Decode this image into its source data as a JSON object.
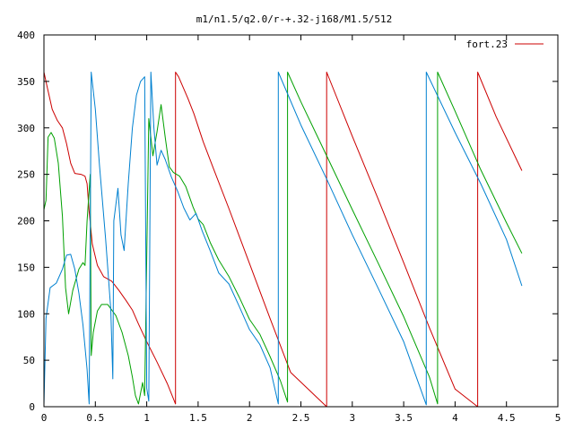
{
  "chart_data": {
    "type": "line",
    "title": "m1/n1.5/q2.0/r-+.32-j168/M1.5/512",
    "xlabel": "",
    "ylabel": "",
    "xlim": [
      0,
      5
    ],
    "ylim": [
      0,
      400
    ],
    "x_ticks": [
      "0",
      "0.5",
      "1",
      "1.5",
      "2",
      "2.5",
      "3",
      "3.5",
      "4",
      "4.5",
      "5"
    ],
    "y_ticks": [
      "0",
      "50",
      "100",
      "150",
      "200",
      "250",
      "300",
      "350",
      "400"
    ],
    "grid": false,
    "legend": {
      "position": "top-right",
      "entries": [
        "fort.23"
      ]
    },
    "series": [
      {
        "name": "fort.23",
        "color": "#cc0000",
        "points": [
          [
            0.0,
            360
          ],
          [
            0.03,
            345
          ],
          [
            0.08,
            320
          ],
          [
            0.13,
            308
          ],
          [
            0.18,
            300
          ],
          [
            0.22,
            283
          ],
          [
            0.26,
            262
          ],
          [
            0.3,
            251
          ],
          [
            0.36,
            250
          ],
          [
            0.4,
            248
          ],
          [
            0.42,
            240
          ],
          [
            0.44,
            210
          ],
          [
            0.47,
            175
          ],
          [
            0.52,
            152
          ],
          [
            0.58,
            140
          ],
          [
            0.66,
            135
          ],
          [
            0.73,
            125
          ],
          [
            0.8,
            114
          ],
          [
            0.86,
            104
          ],
          [
            0.92,
            89
          ],
          [
            1.0,
            70
          ],
          [
            1.1,
            48
          ],
          [
            1.2,
            25
          ],
          [
            1.28,
            3
          ],
          [
            1.28,
            360
          ],
          [
            1.31,
            355
          ],
          [
            1.4,
            332
          ],
          [
            1.46,
            315
          ],
          [
            1.55,
            285
          ],
          [
            1.65,
            256
          ],
          [
            1.8,
            213
          ],
          [
            2.0,
            154
          ],
          [
            2.2,
            95
          ],
          [
            2.4,
            37
          ],
          [
            2.75,
            0
          ],
          [
            2.75,
            360
          ],
          [
            3.0,
            291
          ],
          [
            3.25,
            224
          ],
          [
            3.5,
            155
          ],
          [
            3.75,
            85
          ],
          [
            4.0,
            19
          ],
          [
            4.22,
            0
          ],
          [
            4.22,
            360
          ],
          [
            4.4,
            312
          ],
          [
            4.65,
            254
          ]
        ]
      },
      {
        "color": "#00a000",
        "points": [
          [
            0.0,
            212
          ],
          [
            0.02,
            222
          ],
          [
            0.04,
            290
          ],
          [
            0.07,
            295
          ],
          [
            0.1,
            289
          ],
          [
            0.14,
            262
          ],
          [
            0.18,
            205
          ],
          [
            0.21,
            128
          ],
          [
            0.24,
            100
          ],
          [
            0.28,
            125
          ],
          [
            0.34,
            148
          ],
          [
            0.38,
            155
          ],
          [
            0.4,
            152
          ],
          [
            0.42,
            200
          ],
          [
            0.45,
            250
          ],
          [
            0.46,
            55
          ],
          [
            0.48,
            80
          ],
          [
            0.52,
            103
          ],
          [
            0.56,
            110
          ],
          [
            0.62,
            110
          ],
          [
            0.7,
            98
          ],
          [
            0.76,
            80
          ],
          [
            0.82,
            55
          ],
          [
            0.86,
            32
          ],
          [
            0.89,
            12
          ],
          [
            0.92,
            3
          ],
          [
            0.96,
            26
          ],
          [
            0.98,
            12
          ],
          [
            1.02,
            310
          ],
          [
            1.06,
            270
          ],
          [
            1.1,
            296
          ],
          [
            1.14,
            325
          ],
          [
            1.18,
            290
          ],
          [
            1.22,
            258
          ],
          [
            1.26,
            252
          ],
          [
            1.32,
            248
          ],
          [
            1.38,
            237
          ],
          [
            1.45,
            215
          ],
          [
            1.5,
            202
          ],
          [
            1.55,
            196
          ],
          [
            1.62,
            176
          ],
          [
            1.7,
            158
          ],
          [
            1.8,
            140
          ],
          [
            1.9,
            118
          ],
          [
            2.0,
            94
          ],
          [
            2.1,
            78
          ],
          [
            2.2,
            54
          ],
          [
            2.3,
            28
          ],
          [
            2.37,
            5
          ],
          [
            2.37,
            360
          ],
          [
            2.5,
            328
          ],
          [
            2.75,
            270
          ],
          [
            3.0,
            212
          ],
          [
            3.25,
            155
          ],
          [
            3.5,
            97
          ],
          [
            3.75,
            32
          ],
          [
            3.83,
            3
          ],
          [
            3.83,
            360
          ],
          [
            4.0,
            318
          ],
          [
            4.25,
            255
          ],
          [
            4.5,
            198
          ],
          [
            4.65,
            165
          ]
        ]
      },
      {
        "color": "#0080d0",
        "points": [
          [
            0.0,
            2
          ],
          [
            0.02,
            95
          ],
          [
            0.06,
            128
          ],
          [
            0.12,
            133
          ],
          [
            0.18,
            148
          ],
          [
            0.22,
            163
          ],
          [
            0.26,
            164
          ],
          [
            0.3,
            148
          ],
          [
            0.34,
            122
          ],
          [
            0.38,
            88
          ],
          [
            0.42,
            40
          ],
          [
            0.44,
            3
          ],
          [
            0.46,
            360
          ],
          [
            0.5,
            320
          ],
          [
            0.54,
            260
          ],
          [
            0.6,
            180
          ],
          [
            0.65,
            105
          ],
          [
            0.67,
            30
          ],
          [
            0.68,
            200
          ],
          [
            0.72,
            235
          ],
          [
            0.75,
            185
          ],
          [
            0.78,
            168
          ],
          [
            0.82,
            240
          ],
          [
            0.86,
            300
          ],
          [
            0.9,
            335
          ],
          [
            0.94,
            350
          ],
          [
            0.98,
            355
          ],
          [
            1.0,
            20
          ],
          [
            1.02,
            6
          ],
          [
            1.04,
            360
          ],
          [
            1.07,
            300
          ],
          [
            1.1,
            260
          ],
          [
            1.14,
            276
          ],
          [
            1.18,
            266
          ],
          [
            1.24,
            247
          ],
          [
            1.3,
            232
          ],
          [
            1.36,
            214
          ],
          [
            1.42,
            201
          ],
          [
            1.48,
            208
          ],
          [
            1.54,
            189
          ],
          [
            1.62,
            167
          ],
          [
            1.7,
            144
          ],
          [
            1.8,
            132
          ],
          [
            1.9,
            108
          ],
          [
            2.0,
            83
          ],
          [
            2.1,
            67
          ],
          [
            2.2,
            42
          ],
          [
            2.28,
            3
          ],
          [
            2.28,
            360
          ],
          [
            2.5,
            303
          ],
          [
            2.75,
            245
          ],
          [
            3.0,
            185
          ],
          [
            3.25,
            128
          ],
          [
            3.5,
            70
          ],
          [
            3.72,
            2
          ],
          [
            3.72,
            360
          ],
          [
            4.0,
            295
          ],
          [
            4.25,
            240
          ],
          [
            4.5,
            180
          ],
          [
            4.65,
            130
          ]
        ]
      }
    ]
  }
}
